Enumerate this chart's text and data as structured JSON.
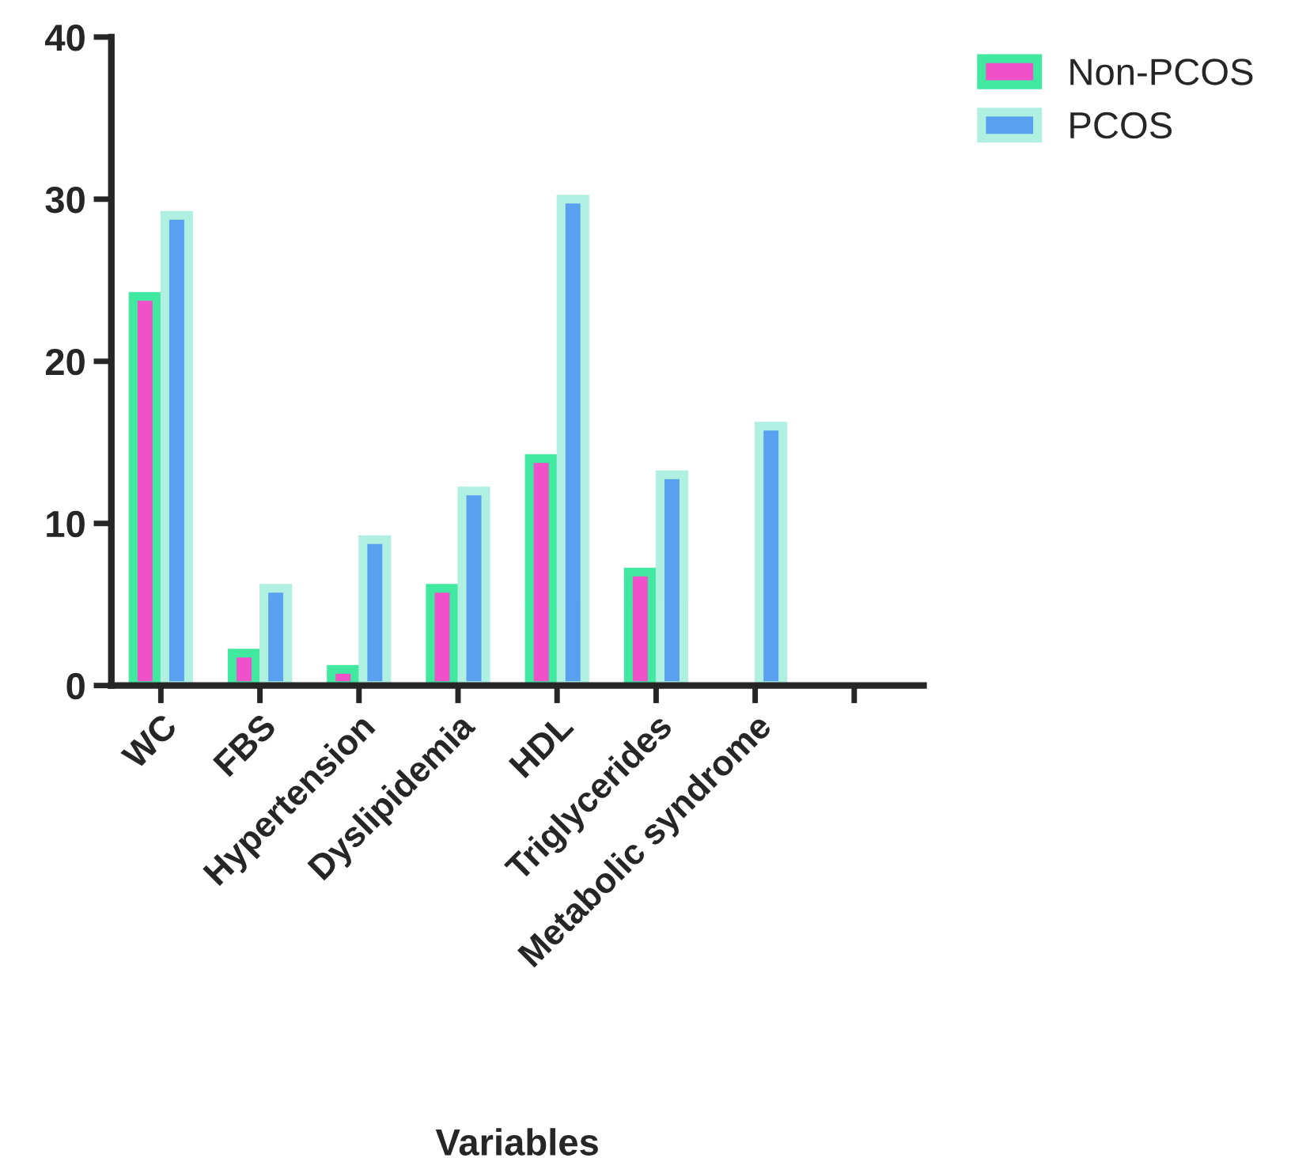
{
  "chart_data": {
    "type": "bar",
    "xlabel": "Variables",
    "categories": [
      "WC",
      "FBS",
      "Hypertension",
      "Dyslipidemia",
      "HDL",
      "Triglycerides",
      "Metabolic syndrome",
      null
    ],
    "series": [
      {
        "name": "Non-PCOS",
        "color": "#f050c8",
        "values": [
          24,
          2,
          1,
          6,
          14,
          7,
          null,
          null
        ]
      },
      {
        "name": "PCOS",
        "color": "#5aa0f0",
        "values": [
          29,
          6,
          9,
          12,
          30,
          13,
          16,
          null
        ]
      }
    ],
    "ylim": [
      0,
      40
    ],
    "yticks": [
      0,
      10,
      20,
      30,
      40
    ],
    "grid": false,
    "legend": "top right"
  }
}
